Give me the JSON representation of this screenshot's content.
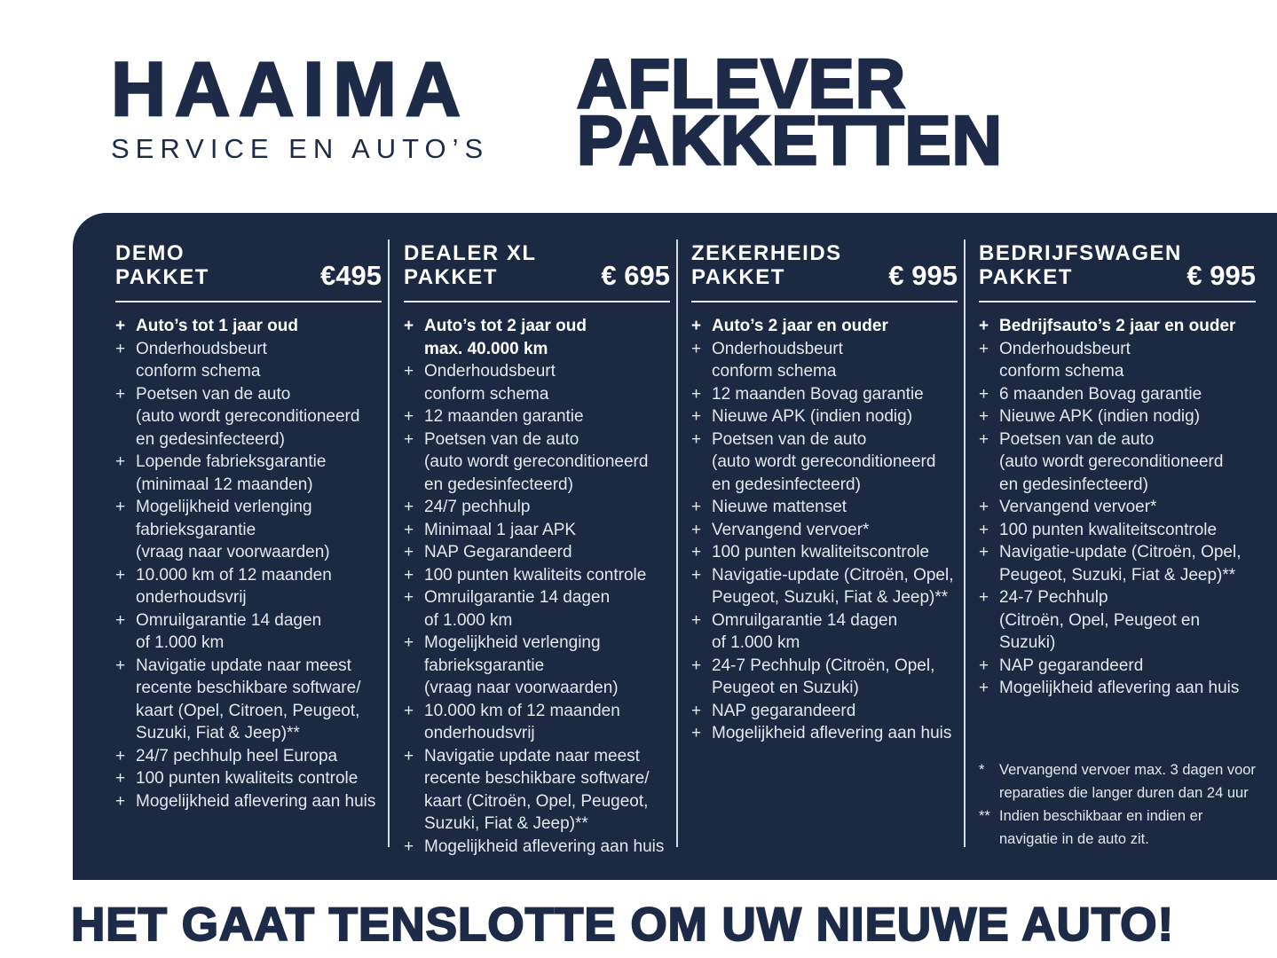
{
  "colors": {
    "navy": "#1c2942",
    "heading_text": "#1d2b49",
    "list_text": "#e3e7ee",
    "white": "#ffffff",
    "divider": "#d4d9e2"
  },
  "header": {
    "logo_title": "HAAIMA",
    "logo_subtitle": "SERVICE EN AUTO’S",
    "page_title": "AFLEVER\nPAKKETTEN"
  },
  "packages": [
    {
      "name": "DEMO\nPAKKET",
      "price": "€495",
      "items": [
        {
          "t": "Auto’s tot 1 jaar oud",
          "b": true
        },
        {
          "t": "Onderhoudsbeurt\nconform schema"
        },
        {
          "t": "Poetsen van de auto\n(auto wordt gereconditioneerd\nen gedesinfecteerd)"
        },
        {
          "t": "Lopende fabrieksgarantie\n(minimaal 12 maanden)"
        },
        {
          "t": "Mogelijkheid verlenging\nfabrieksgarantie\n(vraag naar voorwaarden)"
        },
        {
          "t": "10.000 km of 12 maanden\nonderhoudsvrij"
        },
        {
          "t": "Omruilgarantie 14 dagen\nof 1.000 km"
        },
        {
          "t": "Navigatie update naar meest\nrecente beschikbare software/\nkaart (Opel, Citroen,  Peugeot,\nSuzuki, Fiat & Jeep)**"
        },
        {
          "t": "24/7 pechhulp heel Europa"
        },
        {
          "t": "100 punten kwaliteits controle"
        },
        {
          "t": "Mogelijkheid aflevering aan huis"
        }
      ]
    },
    {
      "name": "DEALER XL\nPAKKET",
      "price": "€ 695",
      "items": [
        {
          "t": "Auto’s tot 2 jaar oud\nmax. 40.000 km",
          "b": true
        },
        {
          "t": "Onderhoudsbeurt\nconform schema"
        },
        {
          "t": "12 maanden garantie"
        },
        {
          "t": "Poetsen van de auto\n(auto wordt gereconditioneerd\nen gedesinfecteerd)"
        },
        {
          "t": "24/7 pechhulp"
        },
        {
          "t": "Minimaal 1 jaar APK"
        },
        {
          "t": "NAP Gegarandeerd"
        },
        {
          "t": "100 punten kwaliteits controle"
        },
        {
          "t": "Omruilgarantie 14 dagen\nof 1.000 km"
        },
        {
          "t": "Mogelijkheid verlenging\nfabrieksgarantie\n(vraag naar voorwaarden)"
        },
        {
          "t": "10.000 km of 12 maanden\nonderhoudsvrij"
        },
        {
          "t": "Navigatie update naar meest\nrecente beschikbare software/\nkaart (Citroën, Opel, Peugeot,\nSuzuki, Fiat & Jeep)**"
        },
        {
          "t": "Mogelijkheid aflevering aan huis"
        }
      ]
    },
    {
      "name": "ZEKERHEIDS\nPAKKET",
      "price": "€ 995",
      "items": [
        {
          "t": "Auto’s 2 jaar en ouder",
          "b": true
        },
        {
          "t": "Onderhoudsbeurt\nconform schema"
        },
        {
          "t": "12 maanden Bovag garantie"
        },
        {
          "t": "Nieuwe APK (indien nodig)"
        },
        {
          "t": "Poetsen van de auto\n(auto wordt gereconditioneerd\nen gedesinfecteerd)"
        },
        {
          "t": "Nieuwe mattenset"
        },
        {
          "t": "Vervangend vervoer*"
        },
        {
          "t": "100 punten kwaliteitscontrole"
        },
        {
          "t": "Navigatie-update (Citroën, Opel,\nPeugeot, Suzuki, Fiat & Jeep)**"
        },
        {
          "t": "Omruilgarantie 14 dagen\nof 1.000 km"
        },
        {
          "t": "24-7 Pechhulp (Citroën, Opel,\nPeugeot en Suzuki)"
        },
        {
          "t": "NAP gegarandeerd"
        },
        {
          "t": "Mogelijkheid aflevering aan huis"
        }
      ]
    },
    {
      "name": "BEDRIJFSWAGEN\nPAKKET",
      "price": "€ 995",
      "items": [
        {
          "t": "Bedrijfsauto’s 2 jaar en ouder",
          "b": true
        },
        {
          "t": "Onderhoudsbeurt\nconform schema"
        },
        {
          "t": "6 maanden Bovag garantie"
        },
        {
          "t": "Nieuwe APK (indien nodig)"
        },
        {
          "t": "Poetsen van de auto\n(auto wordt gereconditioneerd\nen gedesinfecteerd)"
        },
        {
          "t": "Vervangend vervoer*"
        },
        {
          "t": "100 punten kwaliteitscontrole"
        },
        {
          "t": "Navigatie-update (Citroën, Opel,\nPeugeot, Suzuki, Fiat & Jeep)**"
        },
        {
          "t": "24-7 Pechhulp\n(Citroën, Opel, Peugeot en Suzuki)"
        },
        {
          "t": "NAP gegarandeerd"
        },
        {
          "t": "Mogelijkheid aflevering aan huis"
        }
      ]
    }
  ],
  "footnotes": [
    {
      "m": "*",
      "t": "Vervangend vervoer max. 3 dagen voor\nreparaties die langer duren dan 24 uur"
    },
    {
      "m": "**",
      "t": "Indien beschikbaar en indien er\nnavigatie in de auto zit."
    }
  ],
  "tagline": "HET GAAT TENSLOTTE OM UW NIEUWE AUTO!"
}
